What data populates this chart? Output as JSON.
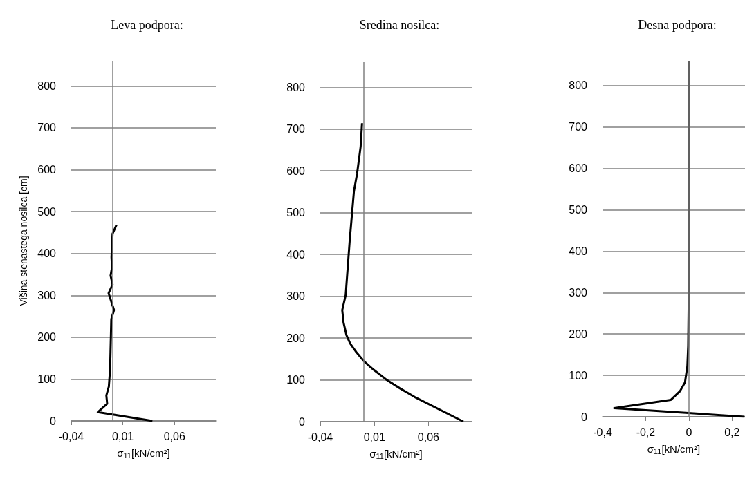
{
  "chart_data": [
    {
      "type": "line",
      "title": "Leva podpora:",
      "xlabel": "σ$_{11}$[kN/cm²]",
      "ylabel": "Višina stenastega nosilca [cm]",
      "xlim": [
        -0.04,
        0.1
      ],
      "xticks": [
        {
          "value": -0.04,
          "label": "-0,04"
        },
        {
          "value": 0.01,
          "label": "0,01"
        },
        {
          "value": 0.06,
          "label": "0,06"
        }
      ],
      "ylim": [
        0,
        860
      ],
      "yticks": [
        0,
        100,
        200,
        300,
        400,
        500,
        600,
        700,
        800
      ],
      "grid": "y",
      "marker": "none",
      "ref_lines": [
        {
          "axis": "x",
          "value": 0,
          "color": "#808080"
        }
      ],
      "series": [
        {
          "color": "#000000",
          "x": [
            0.0386,
            -0.0143,
            -0.0052,
            -0.006,
            -0.0036,
            -0.0024,
            -0.0012,
            0.0014,
            -0.0038,
            0,
            -0.0019,
            -0.0005,
            -0.001,
            0,
            0.0038
          ],
          "values": [
            0,
            21,
            41,
            61,
            82,
            122,
            243,
            265,
            305,
            326,
            347,
            367,
            391,
            447,
            468
          ]
        }
      ]
    },
    {
      "type": "line",
      "title": "Sredina nosilca:",
      "xlabel": "σ$_{11}$[kN/cm²]",
      "xlim": [
        -0.04,
        0.1
      ],
      "xticks": [
        {
          "value": -0.04,
          "label": "-0,04"
        },
        {
          "value": 0.01,
          "label": "0,01"
        },
        {
          "value": 0.06,
          "label": "0,06"
        }
      ],
      "ylim": [
        0,
        860
      ],
      "yticks": [
        0,
        100,
        200,
        300,
        400,
        500,
        600,
        700,
        800
      ],
      "grid": "y",
      "marker": "none",
      "ref_lines": [
        {
          "axis": "x",
          "value": 0,
          "color": "#808080"
        }
      ],
      "series": [
        {
          "color": "#000000",
          "x": [
            0.0923,
            0.0472,
            0.0334,
            0.0208,
            0.0094,
            0.0002,
            -0.0066,
            -0.0124,
            -0.0158,
            -0.0185,
            -0.0197,
            -0.0165,
            -0.0128,
            -0.0089,
            -0.006,
            -0.0027,
            -0.0014
          ],
          "values": [
            0,
            59,
            80,
            101,
            124,
            145,
            166,
            187,
            207,
            237,
            267,
            303,
            433,
            551,
            593,
            658,
            714
          ]
        }
      ]
    },
    {
      "type": "line",
      "title": "Desna podpora:",
      "xlabel": "σ$_{11}$[kN/cm²]",
      "xlim": [
        -0.4,
        0.26
      ],
      "xticks": [
        {
          "value": -0.4,
          "label": "-0,4"
        },
        {
          "value": -0.2,
          "label": "-0,2"
        },
        0,
        {
          "value": 0.2,
          "label": "0,2"
        }
      ],
      "ylim": [
        0,
        860
      ],
      "yticks": [
        0,
        100,
        200,
        300,
        400,
        500,
        600,
        700,
        800
      ],
      "grid": "y",
      "marker": "none",
      "ref_lines": [
        {
          "axis": "x",
          "value": 0,
          "color": "#808080"
        }
      ],
      "series": [
        {
          "color": "#000000",
          "x": [
            0.258,
            -0.346,
            -0.083,
            -0.041,
            -0.018,
            -0.007,
            -0.003,
            -0.001,
            -0.001,
            0,
            0
          ],
          "values": [
            0,
            21,
            41,
            62,
            83,
            122,
            171,
            266,
            456,
            635,
            860
          ]
        }
      ]
    }
  ]
}
